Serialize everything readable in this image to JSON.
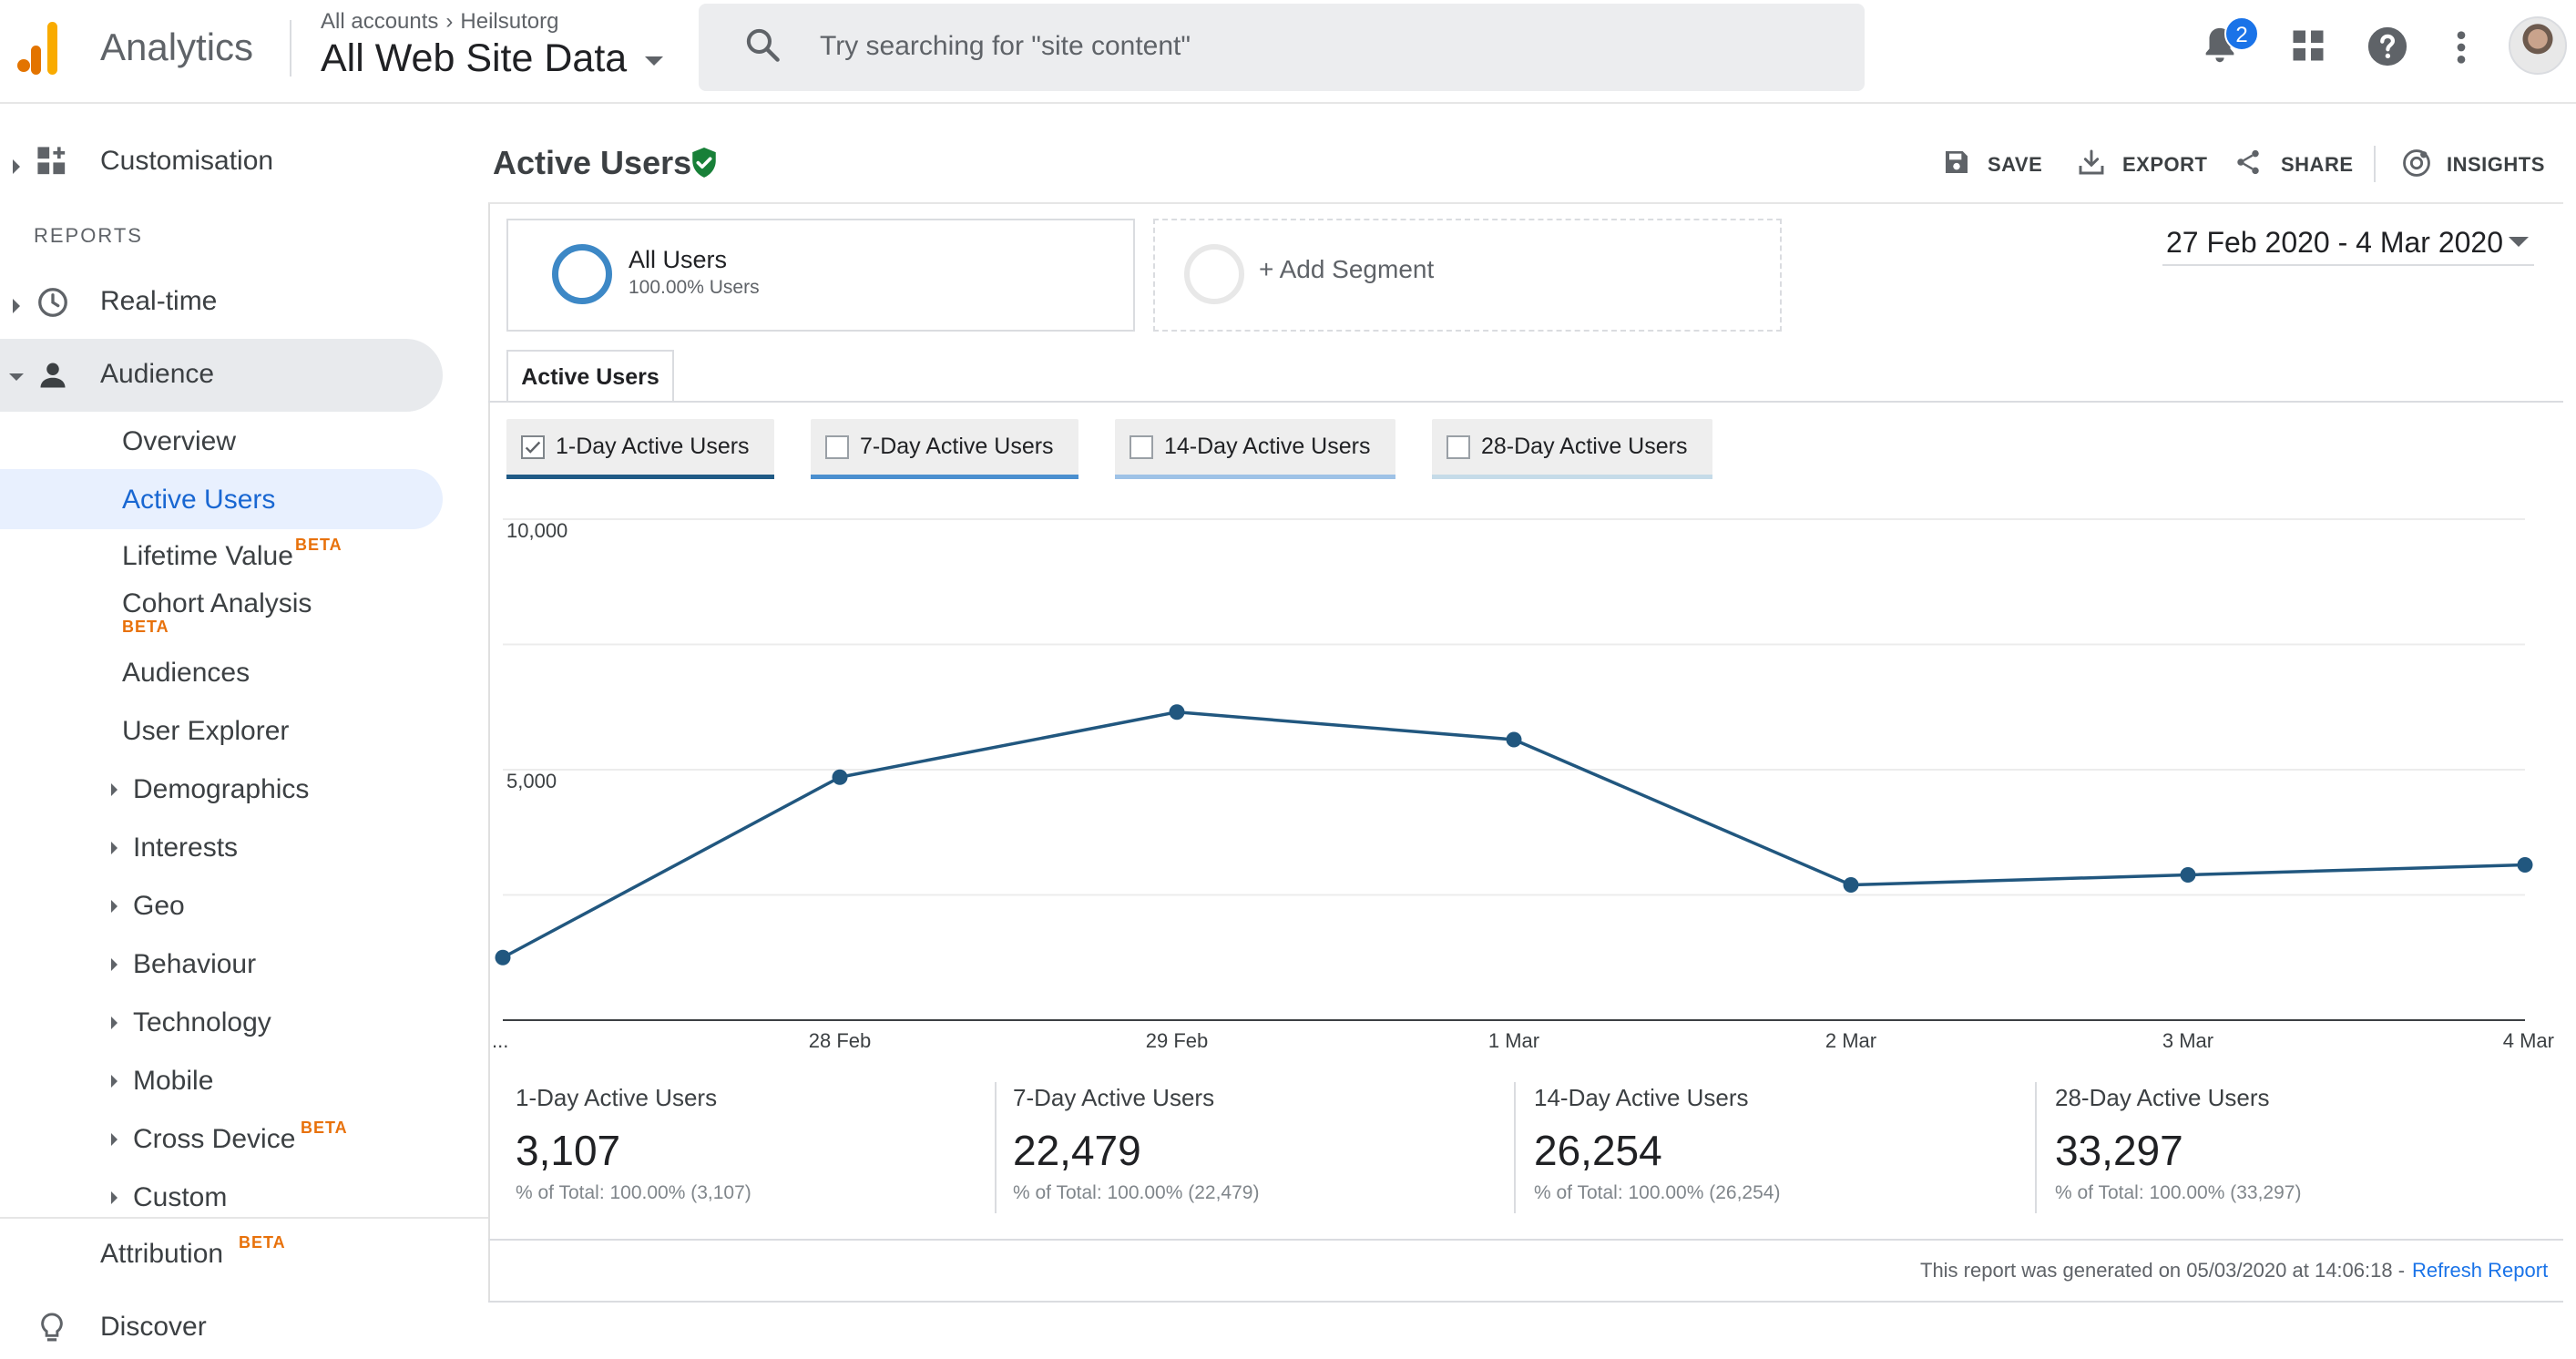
{
  "header": {
    "product_name": "Analytics",
    "breadcrumb": [
      "All accounts",
      "Heilsutorg"
    ],
    "view_name": "All Web Site Data",
    "search_placeholder": "Try searching for \"site content\"",
    "notification_count": "2"
  },
  "sidebar": {
    "customisation": "Customisation",
    "reports_heading": "REPORTS",
    "realtime": "Real-time",
    "audience": "Audience",
    "audience_items": {
      "overview": "Overview",
      "active_users": "Active Users",
      "lifetime_value": "Lifetime Value",
      "cohort_analysis": "Cohort Analysis",
      "audiences": "Audiences",
      "user_explorer": "User Explorer",
      "demographics": "Demographics",
      "interests": "Interests",
      "geo": "Geo",
      "behaviour": "Behaviour",
      "technology": "Technology",
      "mobile": "Mobile",
      "cross_device": "Cross Device",
      "custom": "Custom"
    },
    "beta_label": "BETA",
    "attribution": "Attribution",
    "discover": "Discover"
  },
  "toolbar": {
    "title": "Active Users",
    "save": "SAVE",
    "export": "EXPORT",
    "share": "SHARE",
    "insights": "INSIGHTS"
  },
  "segments": {
    "all_users_name": "All Users",
    "all_users_pct": "100.00% Users",
    "add_segment": "+ Add Segment"
  },
  "date_range": "27 Feb 2020 - 4 Mar 2020",
  "tabs": {
    "active": "Active Users"
  },
  "metric_toggles": [
    {
      "label": "1-Day Active Users",
      "checked": true,
      "color": "#1f5a85"
    },
    {
      "label": "7-Day Active Users",
      "checked": false,
      "color": "#4a8fcf"
    },
    {
      "label": "14-Day Active Users",
      "checked": false,
      "color": "#9ec2e6"
    },
    {
      "label": "28-Day Active Users",
      "checked": false,
      "color": "#c5dbe8"
    }
  ],
  "chart_data": {
    "type": "line",
    "categories": [
      "...",
      "28 Feb",
      "29 Feb",
      "1 Mar",
      "2 Mar",
      "3 Mar",
      "4 Mar"
    ],
    "series": [
      {
        "name": "1-Day Active Users",
        "values": [
          1250,
          4850,
          6150,
          5600,
          2700,
          2900,
          3100
        ],
        "color": "#21577f"
      }
    ],
    "y_ticks": [
      {
        "value": 10000,
        "label": "10,000"
      },
      {
        "value": 5000,
        "label": "5,000"
      }
    ],
    "ylim": [
      0,
      10000
    ],
    "grid": true
  },
  "stats": [
    {
      "name": "1-Day Active Users",
      "value": "3,107",
      "total": "% of Total: 100.00% (3,107)"
    },
    {
      "name": "7-Day Active Users",
      "value": "22,479",
      "total": "% of Total: 100.00% (22,479)"
    },
    {
      "name": "14-Day Active Users",
      "value": "26,254",
      "total": "% of Total: 100.00% (26,254)"
    },
    {
      "name": "28-Day Active Users",
      "value": "33,297",
      "total": "% of Total: 100.00% (33,297)"
    }
  ],
  "footer": {
    "generated": "This report was generated on 05/03/2020 at 14:06:18 -",
    "refresh": "Refresh Report"
  }
}
